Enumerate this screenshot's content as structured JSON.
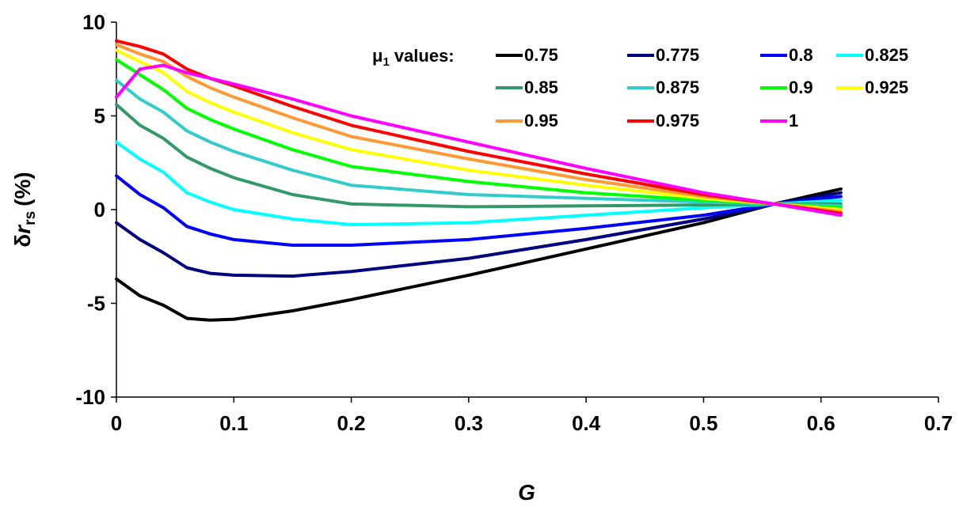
{
  "chart_data": {
    "type": "line",
    "xlabel": "G",
    "ylabel": {
      "symbol": "δ",
      "variable": "r",
      "subscript": "rs",
      "unit": "(%)"
    },
    "legend_title": {
      "symbol": "μ",
      "subscript": "1",
      "text": "values:"
    },
    "x": [
      0,
      0.02,
      0.04,
      0.06,
      0.08,
      0.1,
      0.15,
      0.2,
      0.3,
      0.4,
      0.5,
      0.56,
      0.617
    ],
    "xlim": [
      0,
      0.7
    ],
    "xticks": [
      0,
      0.1,
      0.2,
      0.3,
      0.4,
      0.5,
      0.6,
      0.7
    ],
    "ylim": [
      -10,
      10
    ],
    "yticks": [
      -10,
      -5,
      0,
      5,
      10
    ],
    "grid": false,
    "series": [
      {
        "name": "0.75",
        "color": "#000000",
        "values": [
          -3.7,
          -4.6,
          -5.1,
          -5.8,
          -5.9,
          -5.85,
          -5.4,
          -4.8,
          -3.5,
          -2.1,
          -0.7,
          0.3,
          1.1
        ]
      },
      {
        "name": "0.775",
        "color": "#000080",
        "values": [
          -0.7,
          -1.6,
          -2.3,
          -3.1,
          -3.4,
          -3.5,
          -3.55,
          -3.3,
          -2.6,
          -1.6,
          -0.5,
          0.3,
          0.9
        ]
      },
      {
        "name": "0.8",
        "color": "#0000ff",
        "values": [
          1.8,
          0.8,
          0.1,
          -0.9,
          -1.3,
          -1.6,
          -1.9,
          -1.9,
          -1.6,
          -1.0,
          -0.3,
          0.3,
          0.7
        ]
      },
      {
        "name": "0.825",
        "color": "#00ffff",
        "values": [
          3.6,
          2.7,
          2.0,
          0.9,
          0.4,
          0.0,
          -0.5,
          -0.8,
          -0.7,
          -0.3,
          0.1,
          0.3,
          0.5
        ]
      },
      {
        "name": "0.85",
        "color": "#339966",
        "values": [
          5.6,
          4.5,
          3.8,
          2.8,
          2.2,
          1.7,
          0.8,
          0.3,
          0.15,
          0.2,
          0.25,
          0.3,
          0.3
        ]
      },
      {
        "name": "0.875",
        "color": "#33cccc",
        "values": [
          6.9,
          5.9,
          5.2,
          4.2,
          3.6,
          3.1,
          2.1,
          1.3,
          0.8,
          0.6,
          0.4,
          0.3,
          0.2
        ]
      },
      {
        "name": "0.9",
        "color": "#00ff00",
        "values": [
          8.0,
          7.2,
          6.4,
          5.4,
          4.8,
          4.3,
          3.2,
          2.3,
          1.5,
          0.9,
          0.5,
          0.3,
          0.1
        ]
      },
      {
        "name": "0.925",
        "color": "#ffff00",
        "values": [
          8.5,
          7.9,
          7.3,
          6.3,
          5.7,
          5.2,
          4.1,
          3.2,
          2.1,
          1.3,
          0.6,
          0.3,
          0.0
        ]
      },
      {
        "name": "0.95",
        "color": "#ff9933",
        "values": [
          8.8,
          8.3,
          7.9,
          7.1,
          6.5,
          6.0,
          4.9,
          3.9,
          2.7,
          1.6,
          0.7,
          0.3,
          -0.1
        ]
      },
      {
        "name": "0.975",
        "color": "#ff0000",
        "values": [
          9.0,
          8.7,
          8.3,
          7.5,
          7.0,
          6.6,
          5.5,
          4.5,
          3.1,
          1.9,
          0.8,
          0.3,
          -0.2
        ]
      },
      {
        "name": "1",
        "color": "#ff00ff",
        "values": [
          6.0,
          7.5,
          7.7,
          7.3,
          7.0,
          6.7,
          5.9,
          5.0,
          3.6,
          2.2,
          0.9,
          0.3,
          -0.3
        ]
      }
    ]
  }
}
